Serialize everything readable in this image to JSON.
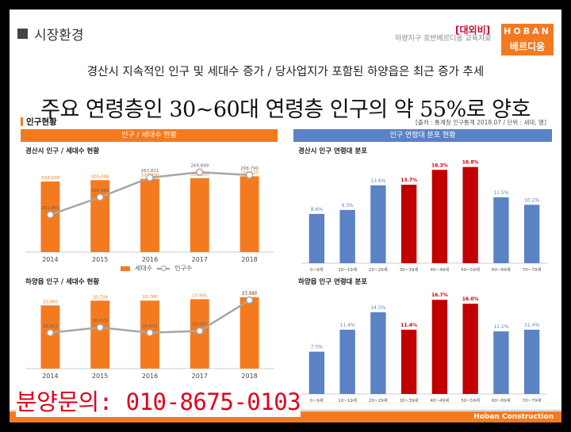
{
  "header": {
    "section_title": "시장환경",
    "confidential": "[대외비]",
    "logo_top": "HOBAN",
    "logo_bottom": "베르디움",
    "note": "하양지구 호반베르디움 교육자료"
  },
  "headline": "경산시 지속적인 인구 및 세대수 증가 / 당사업지가 포함된 하양읍은 최근 증가 추세",
  "big_headline": "주요 연령층인 30~60대 연령층 인구의 약 55%로 양호",
  "left_sub": "인구현황",
  "right_sub": "[출처 : 통계청 인구통계 2018.07 / 단위 : 세대, 명]",
  "panels": {
    "left": "인구 / 세대수 현황",
    "right": "인구 연령대 분포 현황"
  },
  "legend": {
    "bar": "세대수",
    "line": "인구수"
  },
  "footer": {
    "brand": "Hoban Construction"
  },
  "inquiry": "분양문의: 010-8675-0103",
  "colors": {
    "orange": "#f47a20",
    "blue": "#5b82c4",
    "red": "#c00000",
    "grey": "#a6a6a6"
  },
  "chart_data": [
    {
      "type": "bar",
      "title": "경산시 인구 / 세대수 현황",
      "categories": [
        "2014",
        "2015",
        "2016",
        "2017",
        "2018"
      ],
      "series": [
        {
          "name": "세대수",
          "kind": "bar",
          "values": [
            103039,
            105000,
            107000,
            108000,
            110625
          ]
        },
        {
          "name": "인구수",
          "kind": "line",
          "values": [
            253960,
            260495,
            267821,
            269849,
            268790
          ]
        }
      ]
    },
    {
      "type": "bar",
      "title": "경산시 인구 연령대 분포",
      "categories": [
        "0~9세",
        "10~19세",
        "20~29세",
        "30~39세",
        "40~49세",
        "50~59세",
        "60~69세",
        "70~79세"
      ],
      "values": [
        8.6,
        9.3,
        13.6,
        13.7,
        16.3,
        16.8,
        11.5,
        10.2
      ],
      "value_labels": [
        "8.6%",
        "9.3%",
        "13.6%",
        "13.7%",
        "16.3%",
        "16.8%",
        "11.5%",
        "10.2%"
      ],
      "highlight": [
        3,
        4,
        5
      ]
    },
    {
      "type": "bar",
      "title": "하양읍 인구 / 세대수 현황",
      "categories": [
        "2014",
        "2015",
        "2016",
        "2017",
        "2018"
      ],
      "series": [
        {
          "name": "세대수",
          "kind": "bar",
          "values": [
            10000,
            10759,
            10766,
            10991,
            11290
          ]
        },
        {
          "name": "인구수",
          "kind": "line",
          "values": [
            26503,
            26679,
            26502,
            26563,
            27597
          ]
        }
      ]
    },
    {
      "type": "bar",
      "title": "하양읍 인구 연령대 분포",
      "categories": [
        "0~9세",
        "10~19세",
        "20~29세",
        "30~39세",
        "40~49세",
        "50~59세",
        "60~69세",
        "70~79세"
      ],
      "values": [
        7.5,
        11.4,
        14.5,
        11.4,
        16.7,
        16.0,
        11.1,
        11.4
      ],
      "value_labels": [
        "7.5%",
        "11.4%",
        "14.5%",
        "11.4%",
        "16.7%",
        "16.0%",
        "11.1%",
        "11.4%"
      ],
      "highlight": [
        3,
        4,
        5
      ]
    }
  ]
}
